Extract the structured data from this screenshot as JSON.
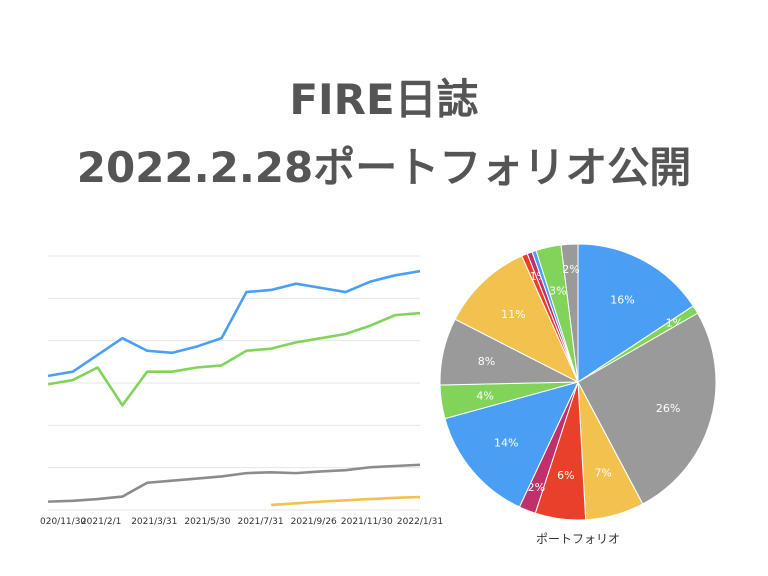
{
  "header": {
    "title_line1": "FIRE日誌",
    "title_line2": "2022.2.28ポートフォリオ公開"
  },
  "chart_data": [
    {
      "type": "line",
      "title": "",
      "xlabel": "",
      "ylabel": "",
      "x_tick_labels": [
        "020/11/30",
        "2021/2/1",
        "2021/3/31",
        "2021/5/30",
        "2021/7/31",
        "2021/9/26",
        "2021/11/30",
        "2022/1/31"
      ],
      "ylim": [
        0,
        100
      ],
      "grid": true,
      "legend": "none",
      "series": [
        {
          "color": "#4a9ff5",
          "values": [
            [
              0,
              32
            ],
            [
              1,
              33
            ],
            [
              2,
              37
            ],
            [
              3,
              41
            ],
            [
              4,
              38
            ],
            [
              5,
              37.5
            ],
            [
              6,
              39
            ],
            [
              7,
              41
            ],
            [
              8,
              52
            ],
            [
              9,
              52.5
            ],
            [
              10,
              54
            ],
            [
              11,
              53
            ],
            [
              12,
              52
            ],
            [
              13,
              54.5
            ],
            [
              14,
              56
            ],
            [
              15,
              57
            ]
          ]
        },
        {
          "color": "#82d35a",
          "values": [
            [
              0,
              30
            ],
            [
              1,
              31
            ],
            [
              2,
              34
            ],
            [
              3,
              25
            ],
            [
              4,
              33
            ],
            [
              5,
              33
            ],
            [
              6,
              34
            ],
            [
              7,
              34.5
            ],
            [
              8,
              38
            ],
            [
              9,
              38.5
            ],
            [
              10,
              40
            ],
            [
              11,
              41
            ],
            [
              12,
              42
            ],
            [
              13,
              44
            ],
            [
              14,
              46.5
            ],
            [
              15,
              47
            ]
          ]
        },
        {
          "color": "#8c8c8c",
          "values": [
            [
              0,
              2
            ],
            [
              1,
              2.2
            ],
            [
              2,
              2.6
            ],
            [
              3,
              3.2
            ],
            [
              4,
              6.5
            ],
            [
              5,
              7
            ],
            [
              6,
              7.5
            ],
            [
              7,
              8
            ],
            [
              8,
              8.8
            ],
            [
              9,
              9
            ],
            [
              10,
              8.8
            ],
            [
              11,
              9.2
            ],
            [
              12,
              9.5
            ],
            [
              13,
              10.2
            ],
            [
              14,
              10.5
            ],
            [
              15,
              10.8
            ]
          ]
        },
        {
          "color": "#f2c14e",
          "values": [
            [
              9,
              1.2
            ],
            [
              10,
              1.6
            ],
            [
              11,
              2
            ],
            [
              12,
              2.3
            ],
            [
              13,
              2.6
            ],
            [
              14,
              2.9
            ],
            [
              15,
              3.1
            ]
          ]
        }
      ]
    },
    {
      "type": "pie",
      "title": "",
      "xlabel": "ポートフォリオ",
      "legend": "none",
      "slices": [
        {
          "label": "16%",
          "value": 16,
          "color": "#4a9ff5",
          "text_color": "#ffffff"
        },
        {
          "label": "1%",
          "value": 1,
          "color": "#82d35a",
          "text_color": "#ffffff"
        },
        {
          "label": "26%",
          "value": 26,
          "color": "#9a9a9a",
          "text_color": "#ffffff"
        },
        {
          "label": "7%",
          "value": 7,
          "color": "#f2c14e",
          "text_color": "#ffffff"
        },
        {
          "label": "6%",
          "value": 6,
          "color": "#e8402a",
          "text_color": "#ffffff"
        },
        {
          "label": "2%",
          "value": 2,
          "color": "#c0306a",
          "text_color": "#ffffff"
        },
        {
          "label": "14%",
          "value": 14,
          "color": "#4a9ff5",
          "text_color": "#ffffff"
        },
        {
          "label": "4%",
          "value": 4,
          "color": "#82d35a",
          "text_color": "#ffffff"
        },
        {
          "label": "8%",
          "value": 8,
          "color": "#9a9a9a",
          "text_color": "#ffffff"
        },
        {
          "label": "11%",
          "value": 11,
          "color": "#f2c14e",
          "text_color": "#ffffff"
        },
        {
          "label": "",
          "value": 0.7,
          "color": "#e8402a",
          "text_color": "#ffffff"
        },
        {
          "label": "1%",
          "value": 0.6,
          "color": "#c0306a",
          "text_color": "#ffffff"
        },
        {
          "label": "",
          "value": 0.5,
          "color": "#4a9ff5",
          "text_color": "#ffffff"
        },
        {
          "label": "3%",
          "value": 3,
          "color": "#82d35a",
          "text_color": "#ffffff"
        },
        {
          "label": "2%",
          "value": 2,
          "color": "#9a9a9a",
          "text_color": "#ffffff"
        }
      ]
    }
  ]
}
